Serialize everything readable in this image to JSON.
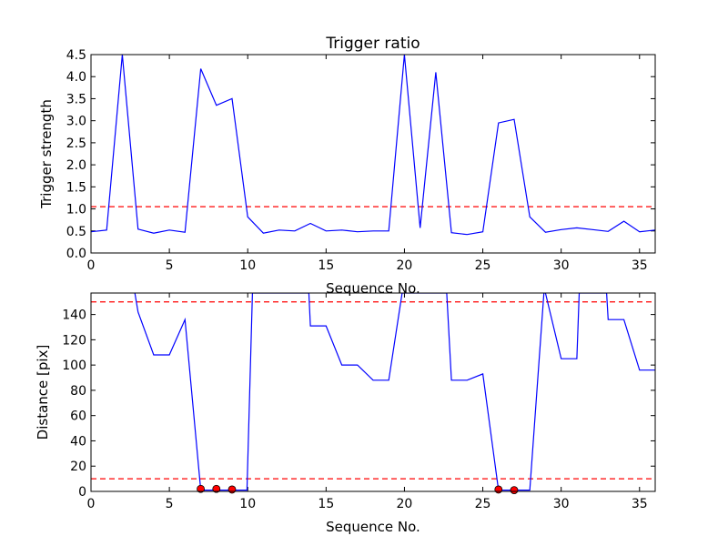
{
  "chart_data": [
    {
      "type": "line",
      "title": "Trigger ratio",
      "xlabel": "Sequence No.",
      "ylabel": "Trigger strength",
      "xlim": [
        0,
        36
      ],
      "ylim": [
        0,
        4.5
      ],
      "xticks": [
        0,
        5,
        10,
        15,
        20,
        25,
        30,
        35
      ],
      "yticks": [
        0.0,
        0.5,
        1.0,
        1.5,
        2.0,
        2.5,
        3.0,
        3.5,
        4.0,
        4.5
      ],
      "grid": false,
      "series": [
        {
          "color": "#0000ff",
          "x": [
            0,
            1,
            2,
            3,
            4,
            5,
            6,
            7,
            8,
            9,
            10,
            11,
            12,
            13,
            14,
            15,
            16,
            17,
            18,
            19,
            20,
            21,
            22,
            23,
            24,
            25,
            26,
            27,
            28,
            29,
            30,
            31,
            32,
            33,
            34,
            35,
            36
          ],
          "values": [
            0.48,
            0.52,
            4.5,
            0.54,
            0.45,
            0.52,
            0.47,
            4.18,
            3.35,
            3.5,
            0.82,
            0.45,
            0.52,
            0.5,
            0.67,
            0.5,
            0.52,
            0.48,
            0.5,
            0.5,
            4.5,
            0.57,
            4.1,
            0.46,
            0.42,
            0.48,
            2.95,
            3.03,
            0.82,
            0.47,
            0.53,
            0.57,
            0.53,
            0.49,
            0.72,
            0.48,
            0.52
          ]
        }
      ],
      "hlines": [
        {
          "y": 1.05,
          "color": "#ff0000",
          "style": "dashed"
        }
      ]
    },
    {
      "type": "line",
      "title": "",
      "xlabel": "Sequence No.",
      "ylabel": "Distance [pix]",
      "xlim": [
        0,
        36
      ],
      "ylim": [
        0,
        157
      ],
      "xticks": [
        0,
        5,
        10,
        15,
        20,
        25,
        30,
        35
      ],
      "yticks": [
        0,
        20,
        40,
        60,
        80,
        100,
        120,
        140
      ],
      "grid": false,
      "series": [
        {
          "color": "#0000ff",
          "x": [
            2.8,
            3,
            4,
            5,
            6,
            7,
            8,
            9,
            9.95,
            10.3,
            13.9,
            14,
            15,
            16,
            17,
            18,
            19,
            19.85,
            22.7,
            23,
            24,
            25,
            26,
            27,
            28,
            28.9,
            29,
            30,
            31,
            31.15,
            32.9,
            33,
            34,
            35,
            36
          ],
          "values": [
            157,
            142,
            108,
            108,
            136,
            1,
            1,
            1,
            1,
            157,
            157,
            131,
            131,
            100,
            100,
            88,
            88,
            157,
            157,
            88,
            88,
            93,
            1,
            1,
            1,
            157,
            157,
            105,
            105,
            157,
            157,
            136,
            136,
            96,
            96
          ]
        }
      ],
      "markers": {
        "color": "#ff0000",
        "x": [
          7,
          8,
          9,
          26,
          27
        ],
        "values": [
          2,
          2,
          1.5,
          1.5,
          1
        ]
      },
      "hlines": [
        {
          "y": 150,
          "color": "#ff0000",
          "style": "dashed"
        },
        {
          "y": 10,
          "color": "#ff0000",
          "style": "dashed"
        }
      ]
    }
  ]
}
